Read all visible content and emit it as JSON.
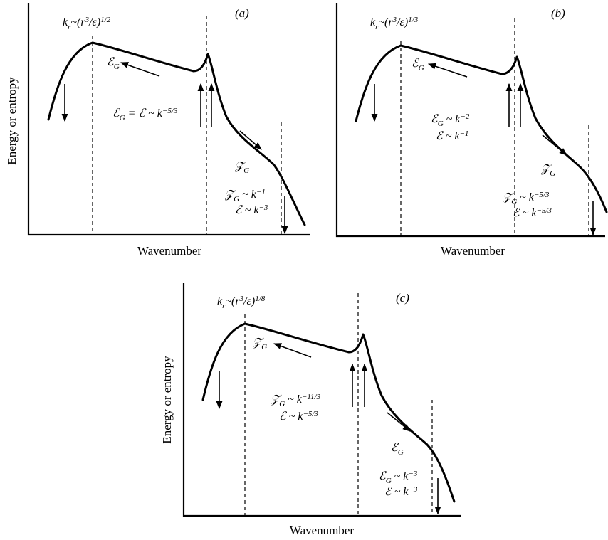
{
  "panels": [
    {
      "tag": "(a)",
      "kr": "k_r~(r^3/ε)^{1/2}",
      "ylabel": "Energy or entropy",
      "xlabel": "Wavenumber",
      "flux_label": "ℰ_G",
      "slope1": "ℰ_G = ℰ ~ k^{−5/3}",
      "slope2": "",
      "cascade_label": "𝒵_G",
      "tail1": "𝒵_G ~ k^{−1}",
      "tail2": "ℰ ~ k^{−3}"
    },
    {
      "tag": "(b)",
      "kr": "k_r~(r^3/ε)^{1/3}",
      "ylabel": "",
      "xlabel": "Wavenumber",
      "flux_label": "ℰ_G",
      "slope1": "ℰ_G ~ k^{−2}",
      "slope2": "ℰ ~ k^{−1}",
      "cascade_label": "𝒵_G",
      "tail1": "𝒵_G ~ k^{−5/3}",
      "tail2": "ℰ ~ k^{−5/3}"
    },
    {
      "tag": "(c)",
      "kr": "k_r~(r^3/ε)^{1/8}",
      "ylabel": "Energy or entropy",
      "xlabel": "Wavenumber",
      "flux_label": "𝒵_G",
      "slope1": "𝒵_G ~ k^{−11/3}",
      "slope2": "ℰ ~ k^{−5/3}",
      "cascade_label": "ℰ_G",
      "tail1": "ℰ_G ~ k^{−3}",
      "tail2": "ℰ ~ k^{−3}"
    }
  ]
}
